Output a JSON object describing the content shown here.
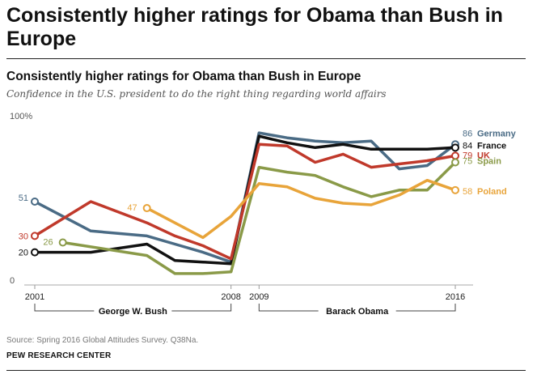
{
  "header": {
    "title": "Consistently higher ratings for Obama than Bush in Europe"
  },
  "footer": {
    "source": "Source: Spring 2016 Global Attitudes Survey. Q38Na.",
    "org": "PEW RESEARCH CENTER"
  },
  "chart_data": {
    "type": "line",
    "title": "Consistently higher ratings for Obama than Bush in Europe",
    "subtitle": "Confidence in the U.S. president to do the right thing regarding world affairs",
    "xlabel": "",
    "ylabel": "",
    "xlim": [
      2001,
      2016
    ],
    "ylim": [
      0,
      100
    ],
    "y_ticks": [
      {
        "value": 100,
        "label": "100%"
      },
      {
        "value": 0,
        "label": "0"
      }
    ],
    "x_ticks": [
      {
        "value": 2001,
        "label": "2001"
      },
      {
        "value": 2008,
        "label": "2008"
      },
      {
        "value": 2009,
        "label": "2009"
      },
      {
        "value": 2016,
        "label": "2016"
      }
    ],
    "periods": [
      {
        "label": "George W. Bush",
        "from": 2001,
        "to": 2008
      },
      {
        "label": "Barack Obama",
        "from": 2009,
        "to": 2016
      }
    ],
    "series": [
      {
        "name": "Germany",
        "color": "#4a6b85",
        "x": [
          2001,
          2003,
          2005,
          2006,
          2007,
          2008,
          2009,
          2010,
          2011,
          2012,
          2013,
          2014,
          2015,
          2016
        ],
        "values": [
          51,
          33,
          30,
          25,
          20,
          14,
          93,
          90,
          88,
          87,
          88,
          71,
          73,
          86
        ],
        "start_label": "51",
        "start_index": 0,
        "end_label": "86",
        "end_name": "Germany"
      },
      {
        "name": "France",
        "color": "#111111",
        "x": [
          2001,
          2003,
          2005,
          2006,
          2007,
          2008,
          2009,
          2010,
          2011,
          2012,
          2013,
          2014,
          2015,
          2016
        ],
        "values": [
          20,
          20,
          25,
          15,
          14,
          13,
          91,
          87,
          84,
          86,
          83,
          83,
          83,
          84
        ],
        "start_label": "20",
        "start_index": 0,
        "end_label": "84",
        "end_name": "France"
      },
      {
        "name": "UK",
        "color": "#c0392b",
        "x": [
          2001,
          2003,
          2005,
          2006,
          2007,
          2008,
          2009,
          2010,
          2011,
          2012,
          2013,
          2014,
          2015,
          2016
        ],
        "values": [
          30,
          51,
          38,
          30,
          24,
          16,
          86,
          85,
          75,
          80,
          72,
          74,
          76,
          79
        ],
        "start_label": "30",
        "start_index": 0,
        "end_label": "79",
        "end_name": "UK"
      },
      {
        "name": "Spain",
        "color": "#8a9a48",
        "x": [
          2002,
          2005,
          2006,
          2007,
          2008,
          2009,
          2010,
          2011,
          2012,
          2013,
          2014,
          2015,
          2016
        ],
        "values": [
          26,
          18,
          7,
          7,
          8,
          72,
          69,
          67,
          60,
          54,
          58,
          58,
          75
        ],
        "start_label": "26",
        "start_index": 0,
        "end_label": "75",
        "end_name": "Spain"
      },
      {
        "name": "Poland",
        "color": "#e8a43a",
        "x": [
          2005,
          2007,
          2008,
          2009,
          2010,
          2011,
          2012,
          2013,
          2014,
          2015,
          2016
        ],
        "values": [
          47,
          29,
          42,
          62,
          60,
          53,
          50,
          49,
          55,
          64,
          58
        ],
        "start_label": "47",
        "start_index": 0,
        "end_label": "58",
        "end_name": "Poland"
      }
    ]
  }
}
